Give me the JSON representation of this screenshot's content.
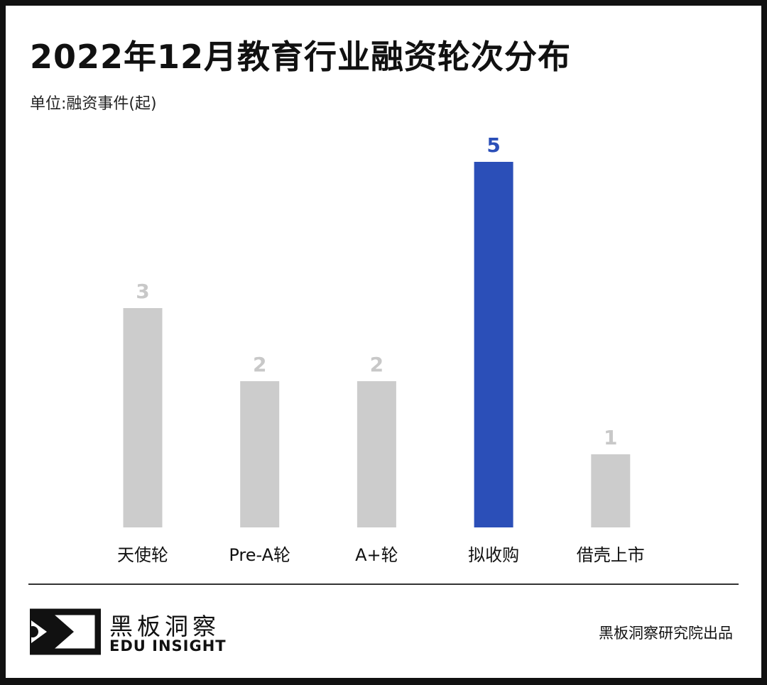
{
  "header": {
    "title": "2022年12月教育行业融资轮次分布",
    "unit": "单位:融资事件(起)"
  },
  "chart_data": {
    "type": "bar",
    "title": "2022年12月教育行业融资轮次分布",
    "ylabel": "单位:融资事件(起)",
    "categories": [
      "天使轮",
      "Pre-A轮",
      "A+轮",
      "拟收购",
      "借壳上市"
    ],
    "values": [
      3,
      2,
      2,
      5,
      1
    ],
    "highlight_index": 3,
    "colors": {
      "default": "#cccccc",
      "highlight": "#2b4fb8",
      "default_label": "#c8c8c8",
      "highlight_label": "#2b4fb8"
    },
    "ylim": [
      0,
      5
    ],
    "grid": false
  },
  "footer": {
    "logo_cn": "黑板洞察",
    "logo_en": "EDU INSIGHT",
    "credit": "黑板洞察研究院出品"
  }
}
